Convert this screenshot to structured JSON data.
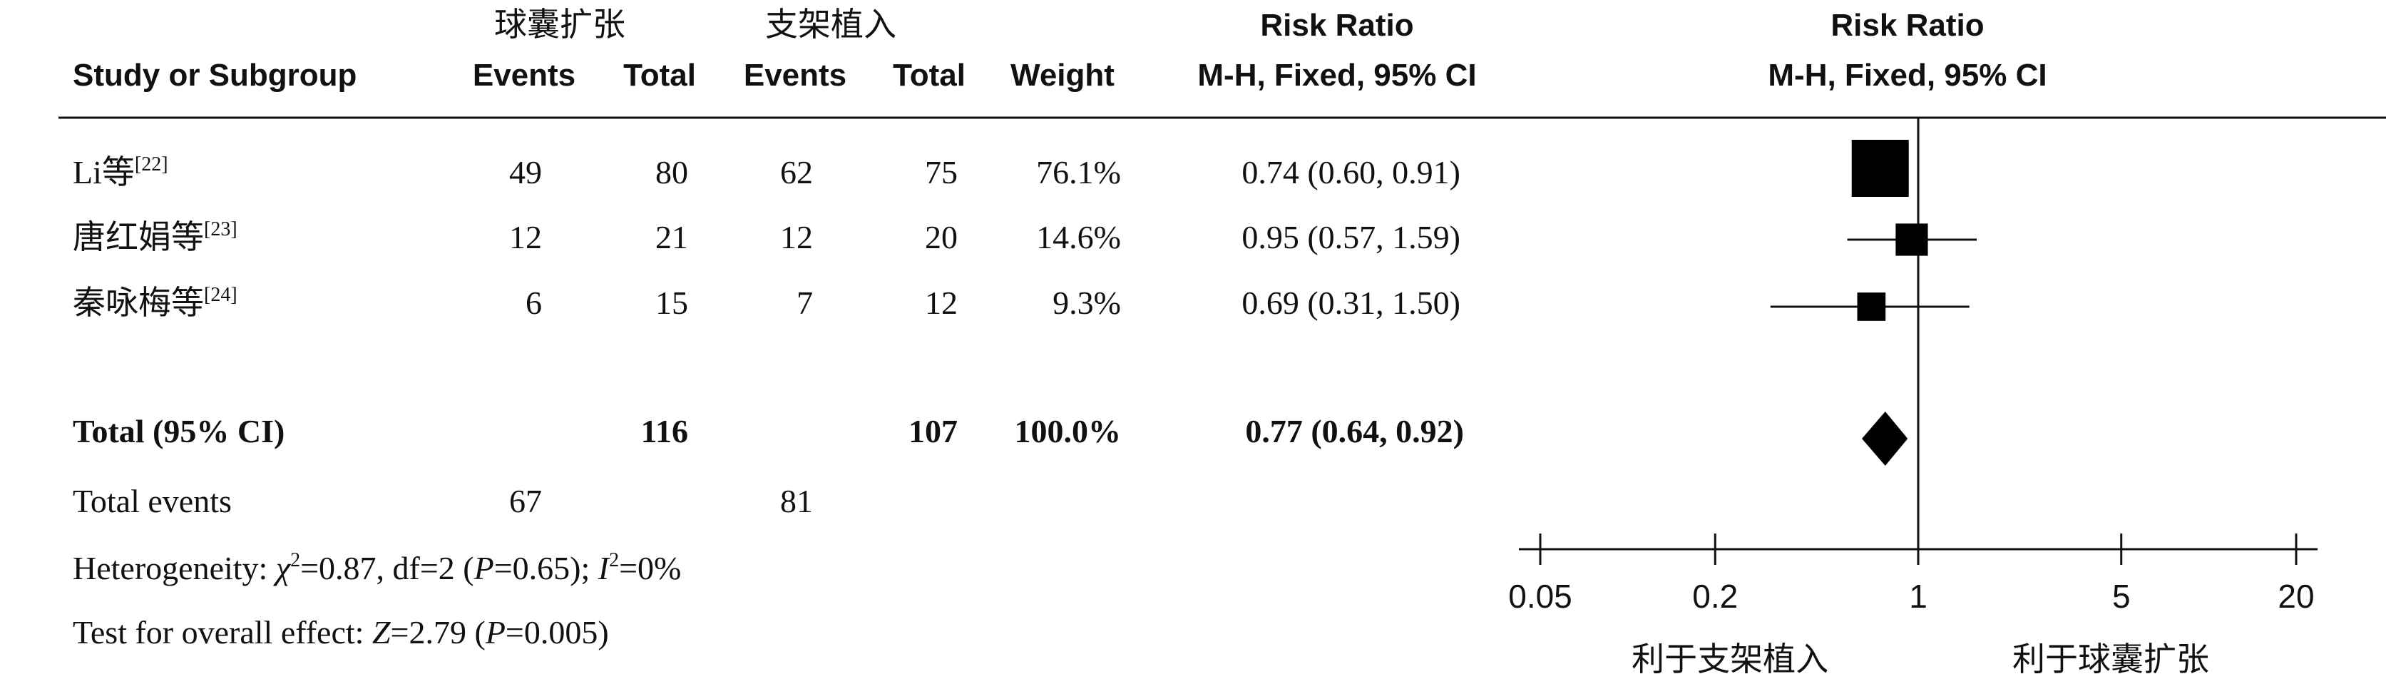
{
  "header": {
    "group1_name": "球囊扩张",
    "group2_name": "支架植入",
    "study_col": "Study or Subgroup",
    "events_col": "Events",
    "total_col": "Total",
    "weight_col": "Weight",
    "rr_title": "Risk Ratio",
    "rr_method": "M-H, Fixed, 95% CI",
    "plot_title": "Risk Ratio",
    "plot_method": "M-H, Fixed, 95% CI"
  },
  "studies": [
    {
      "name": "Li等",
      "ref": "[22]",
      "e1": "49",
      "t1": "80",
      "e2": "62",
      "t2": "75",
      "weight": "76.1%",
      "ci_text": "0.74 (0.60, 0.91)"
    },
    {
      "name": "唐红娟等",
      "ref": "[23]",
      "e1": "12",
      "t1": "21",
      "e2": "12",
      "t2": "20",
      "weight": "14.6%",
      "ci_text": "0.95 (0.57, 1.59)"
    },
    {
      "name": "秦咏梅等",
      "ref": "[24]",
      "e1": "6",
      "t1": "15",
      "e2": "7",
      "t2": "12",
      "weight": "9.3%",
      "ci_text": "0.69 (0.31, 1.50)"
    }
  ],
  "total": {
    "label": "Total (95% CI)",
    "t1": "116",
    "t2": "107",
    "weight": "100.0%",
    "ci_text": "0.77 (0.64, 0.92)"
  },
  "total_events": {
    "label": "Total events",
    "e1": "67",
    "e2": "81"
  },
  "heterogeneity": {
    "prefix": "Heterogeneity: ",
    "chi_symbol": "χ",
    "chi_exp": "2",
    "chi_rest": "=0.87, df=2 (",
    "p_symbol": "P",
    "p_rest": "=0.65); ",
    "i_symbol": "I",
    "i_exp": "2",
    "i_rest": "=0%"
  },
  "overall_effect": {
    "prefix": "Test for overall effect: ",
    "z_symbol": "Z",
    "z_rest": "=2.79 (",
    "p_symbol": "P",
    "p_rest": "=0.005)"
  },
  "chart_data": {
    "type": "forest",
    "scale": "log",
    "xlim": [
      0.05,
      20
    ],
    "ticks": [
      0.05,
      0.2,
      1,
      5,
      20
    ],
    "tick_labels": [
      "0.05",
      "0.2",
      "1",
      "5",
      "20"
    ],
    "reference_line": 1,
    "favours_left": "利于支架植入",
    "favours_right": "利于球囊扩张",
    "studies": [
      {
        "rr": 0.74,
        "lower": 0.6,
        "upper": 0.91,
        "weight": 76.1
      },
      {
        "rr": 0.95,
        "lower": 0.57,
        "upper": 1.59,
        "weight": 14.6
      },
      {
        "rr": 0.69,
        "lower": 0.31,
        "upper": 1.5,
        "weight": 9.3
      }
    ],
    "pooled": {
      "rr": 0.77,
      "lower": 0.64,
      "upper": 0.92
    }
  }
}
